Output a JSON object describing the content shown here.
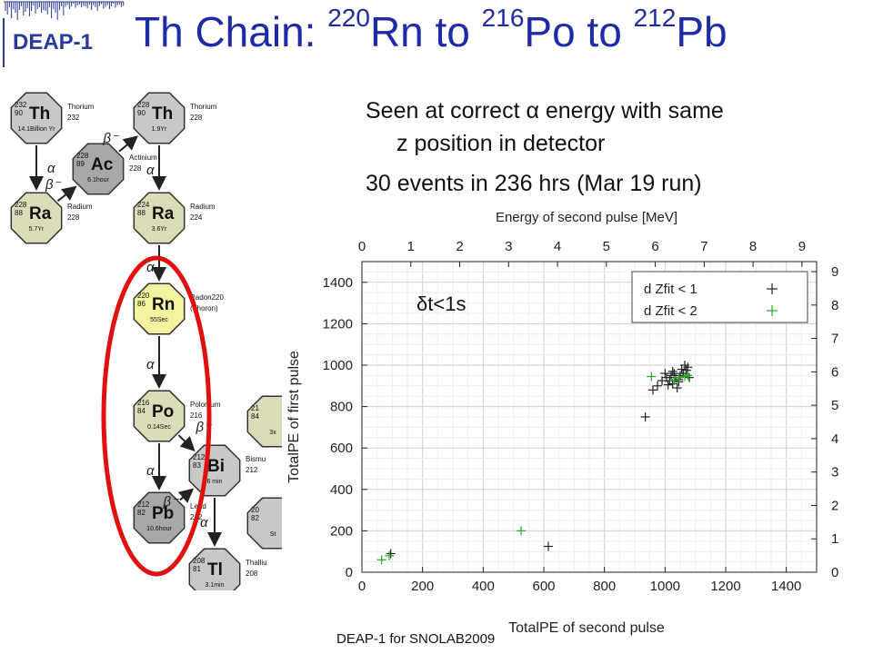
{
  "logo": {
    "text": "DEAP-1"
  },
  "title": {
    "main": "Th Chain: ",
    "m1": "220",
    "e1": "Rn to ",
    "m2": "216",
    "e2": "Po to ",
    "m3": "212",
    "e3": "Pb"
  },
  "bullets": {
    "b1_line1": "Seen at correct α energy with same",
    "b1_line2": "z position in detector",
    "b2": "30 events in 236 hrs (Mar 19 run)"
  },
  "footer": "DEAP-1 for SNOLAB2009",
  "decay_chain": {
    "nuclides": [
      {
        "id": "th232",
        "symbol": "Th",
        "mass": "232",
        "z": "90",
        "halflife": "14.1Billion Yr",
        "name": "Thorium",
        "num": "232",
        "fill": "#c8c8c8"
      },
      {
        "id": "ra228",
        "symbol": "Ra",
        "mass": "228",
        "z": "88",
        "halflife": "5.7Yr",
        "name": "Radium",
        "num": "228",
        "fill": "#dcdcb8"
      },
      {
        "id": "ac228",
        "symbol": "Ac",
        "mass": "228",
        "z": "89",
        "halflife": "6.1hour",
        "name": "Actinium",
        "num": "228",
        "fill": "#a8a8a8"
      },
      {
        "id": "th228",
        "symbol": "Th",
        "mass": "228",
        "z": "90",
        "halflife": "1.9Yr",
        "name": "Thorium",
        "num": "228",
        "fill": "#c8c8c8"
      },
      {
        "id": "ra224",
        "symbol": "Ra",
        "mass": "224",
        "z": "88",
        "halflife": "3.6Yr",
        "name": "Radium",
        "num": "224",
        "fill": "#dcdcb8"
      },
      {
        "id": "rn220",
        "symbol": "Rn",
        "mass": "220",
        "z": "86",
        "halflife": "55Sec",
        "name": "Radon220",
        "num": "(Thoron)",
        "fill": "#f4f4a0"
      },
      {
        "id": "po216",
        "symbol": "Po",
        "mass": "216",
        "z": "84",
        "halflife": "0.14Sec",
        "name": "Polonium",
        "num": "216",
        "fill": "#dcdcb8"
      },
      {
        "id": "pb212",
        "symbol": "Pb",
        "mass": "212",
        "z": "82",
        "halflife": "10.6hour",
        "name": "Lead",
        "num": "212",
        "fill": "#a8a8a8"
      },
      {
        "id": "bi212",
        "symbol": "Bi",
        "mass": "212",
        "z": "83",
        "halflife": "6 min",
        "name": "Bismu",
        "num": "212",
        "fill": "#c8c8c8"
      },
      {
        "id": "tl208",
        "symbol": "Tl",
        "mass": "208",
        "z": "81",
        "halflife": "3.1min",
        "name": "Thalliu",
        "num": "208",
        "fill": "#c8c8c8"
      },
      {
        "id": "po212c",
        "symbol": "",
        "mass": "21",
        "z": "84",
        "halflife": "3x",
        "name": "",
        "num": "",
        "fill": "#dcdcb8"
      },
      {
        "id": "pb208c",
        "symbol": "",
        "mass": "20",
        "z": "82",
        "halflife": "St",
        "name": "",
        "num": "",
        "fill": "#c8c8c8"
      }
    ],
    "decay_labels": {
      "alpha": "α",
      "beta": "β⁻"
    },
    "highlight_color": "#e01010"
  },
  "chart_data": {
    "type": "scatter",
    "xlabel": "TotalPE of second pulse",
    "ylabel": "TotalPE of first pulse",
    "top_axis_label": "Energy of second pulse [MeV]",
    "xlim": [
      0,
      1500
    ],
    "ylim": [
      0,
      1500
    ],
    "xticks": [
      0,
      200,
      400,
      600,
      800,
      1000,
      1200,
      1400
    ],
    "yticks": [
      0,
      200,
      400,
      600,
      800,
      1000,
      1200,
      1400
    ],
    "top_ticks": [
      0,
      1,
      2,
      3,
      4,
      5,
      6,
      7,
      8,
      9
    ],
    "right_ticks": [
      0,
      1,
      2,
      3,
      4,
      5,
      6,
      7,
      8,
      9
    ],
    "grid": true,
    "annotation": "δt<1s",
    "legend_position": "top-right",
    "series": [
      {
        "name": "d Zfit < 1",
        "color": "#222222",
        "marker": "+",
        "points": [
          [
            95,
            90
          ],
          [
            615,
            125
          ],
          [
            935,
            750
          ],
          [
            960,
            880
          ],
          [
            975,
            900
          ],
          [
            990,
            925
          ],
          [
            1000,
            960
          ],
          [
            1005,
            940
          ],
          [
            1010,
            905
          ],
          [
            1015,
            925
          ],
          [
            1020,
            950
          ],
          [
            1025,
            910
          ],
          [
            1030,
            960
          ],
          [
            1035,
            940
          ],
          [
            1040,
            890
          ],
          [
            1045,
            920
          ],
          [
            1050,
            950
          ],
          [
            1055,
            980
          ],
          [
            1060,
            960
          ],
          [
            1065,
            1000
          ],
          [
            1070,
            975
          ],
          [
            1075,
            990
          ],
          [
            1080,
            940
          ],
          [
            1025,
            970
          ],
          [
            1045,
            930
          ]
        ]
      },
      {
        "name": "d Zfit < 2",
        "color": "#22aa22",
        "marker": "+",
        "points": [
          [
            65,
            60
          ],
          [
            90,
            80
          ],
          [
            525,
            200
          ],
          [
            955,
            945
          ],
          [
            1030,
            925
          ],
          [
            1045,
            940
          ],
          [
            1065,
            945
          ],
          [
            1075,
            950
          ]
        ]
      }
    ]
  }
}
